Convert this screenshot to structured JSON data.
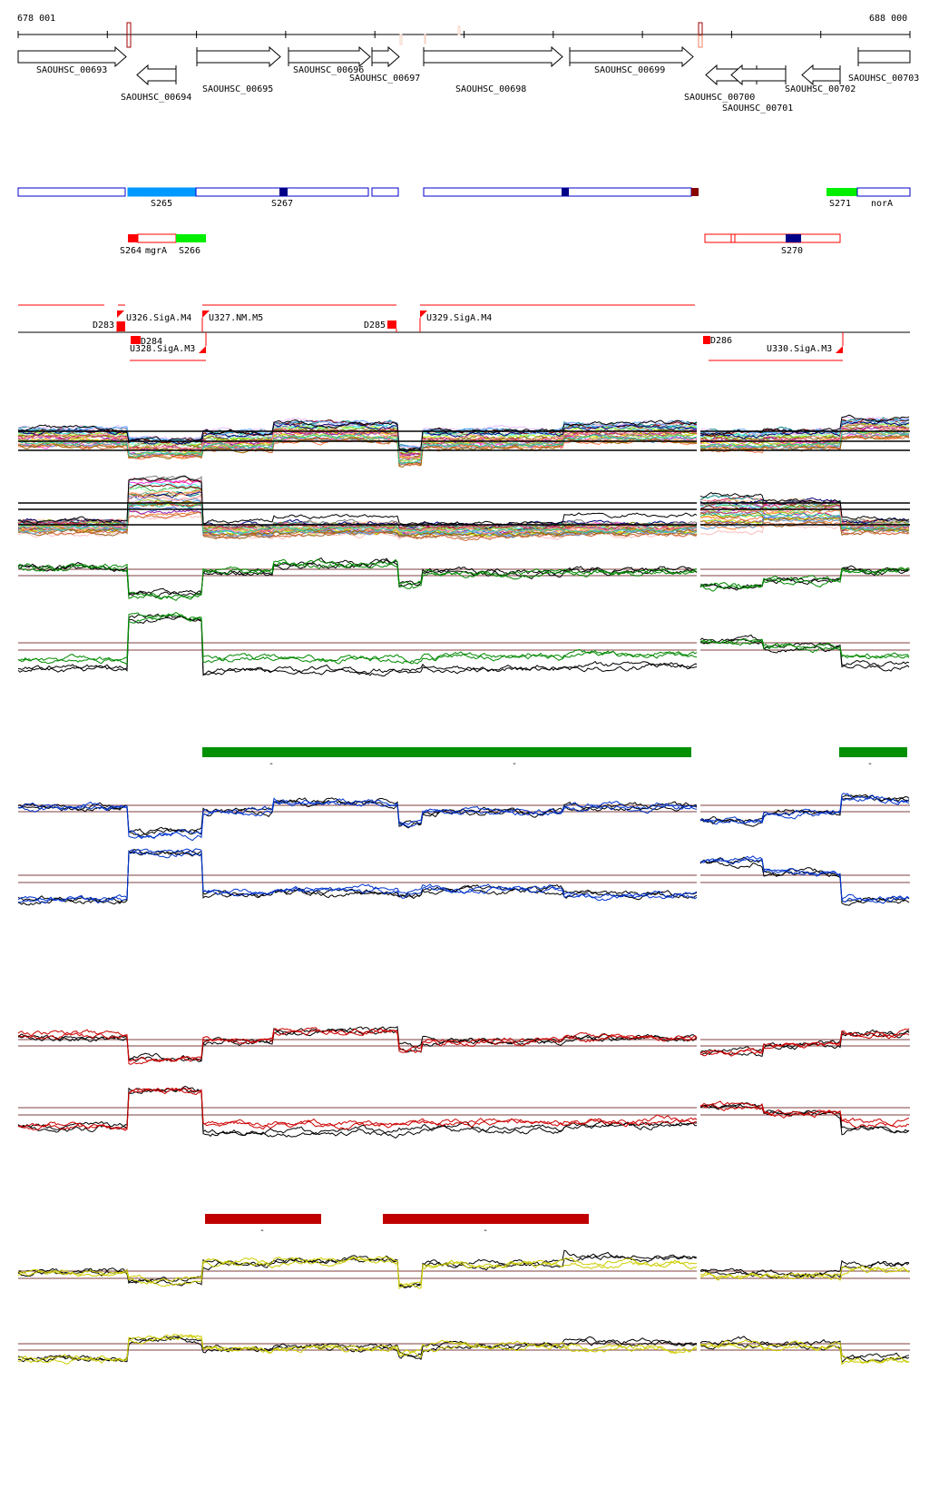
{
  "ruler": {
    "start_label": "678 001",
    "end_label": "688 000"
  },
  "genes": [
    {
      "name": "SAOUHSC_00693",
      "strand": "+"
    },
    {
      "name": "SAOUHSC_00694",
      "strand": "-"
    },
    {
      "name": "SAOUHSC_00695",
      "strand": "+"
    },
    {
      "name": "SAOUHSC_00696",
      "strand": "+"
    },
    {
      "name": "SAOUHSC_00697",
      "strand": "+"
    },
    {
      "name": "SAOUHSC_00698",
      "strand": "+"
    },
    {
      "name": "SAOUHSC_00699",
      "strand": "+"
    },
    {
      "name": "SAOUHSC_00700",
      "strand": "-"
    },
    {
      "name": "SAOUHSC_00701",
      "strand": "-"
    },
    {
      "name": "SAOUHSC_00702",
      "strand": "-"
    },
    {
      "name": "SAOUHSC_00703",
      "strand": "+"
    }
  ],
  "features_plus": {
    "labels": [
      "S265",
      "S267",
      "S271",
      "norA"
    ]
  },
  "features_minus": {
    "labels": [
      "S264",
      "mgrA",
      "S266",
      "S270"
    ]
  },
  "transcripts": {
    "labels": [
      "U326.SigA.M4",
      "D283",
      "U327.NM.M5",
      "D285",
      "U329.SigA.M4",
      "D284",
      "U328.SigA.M3",
      "D286",
      "U330.SigA.M3"
    ]
  },
  "segment_bars": {
    "green_labels": [
      "-",
      "-",
      "-"
    ],
    "red_labels": [
      "-",
      "-"
    ]
  },
  "colors": {
    "gene_outline": "#000000",
    "feature_blue": "#0000cc",
    "feature_lightblue": "#0099ff",
    "feature_darkblue": "#000088",
    "feature_darkred": "#880000",
    "feature_green": "#00ee00",
    "feature_red": "#ff0000",
    "transcript_red": "#ff0000",
    "green_series": "#008800",
    "blue_series": "#0033cc",
    "red_series": "#cc0000",
    "yellow_series": "#cccc00",
    "reference_line": "#996666",
    "green_bar": "#009000",
    "red_bar": "#c00000"
  }
}
